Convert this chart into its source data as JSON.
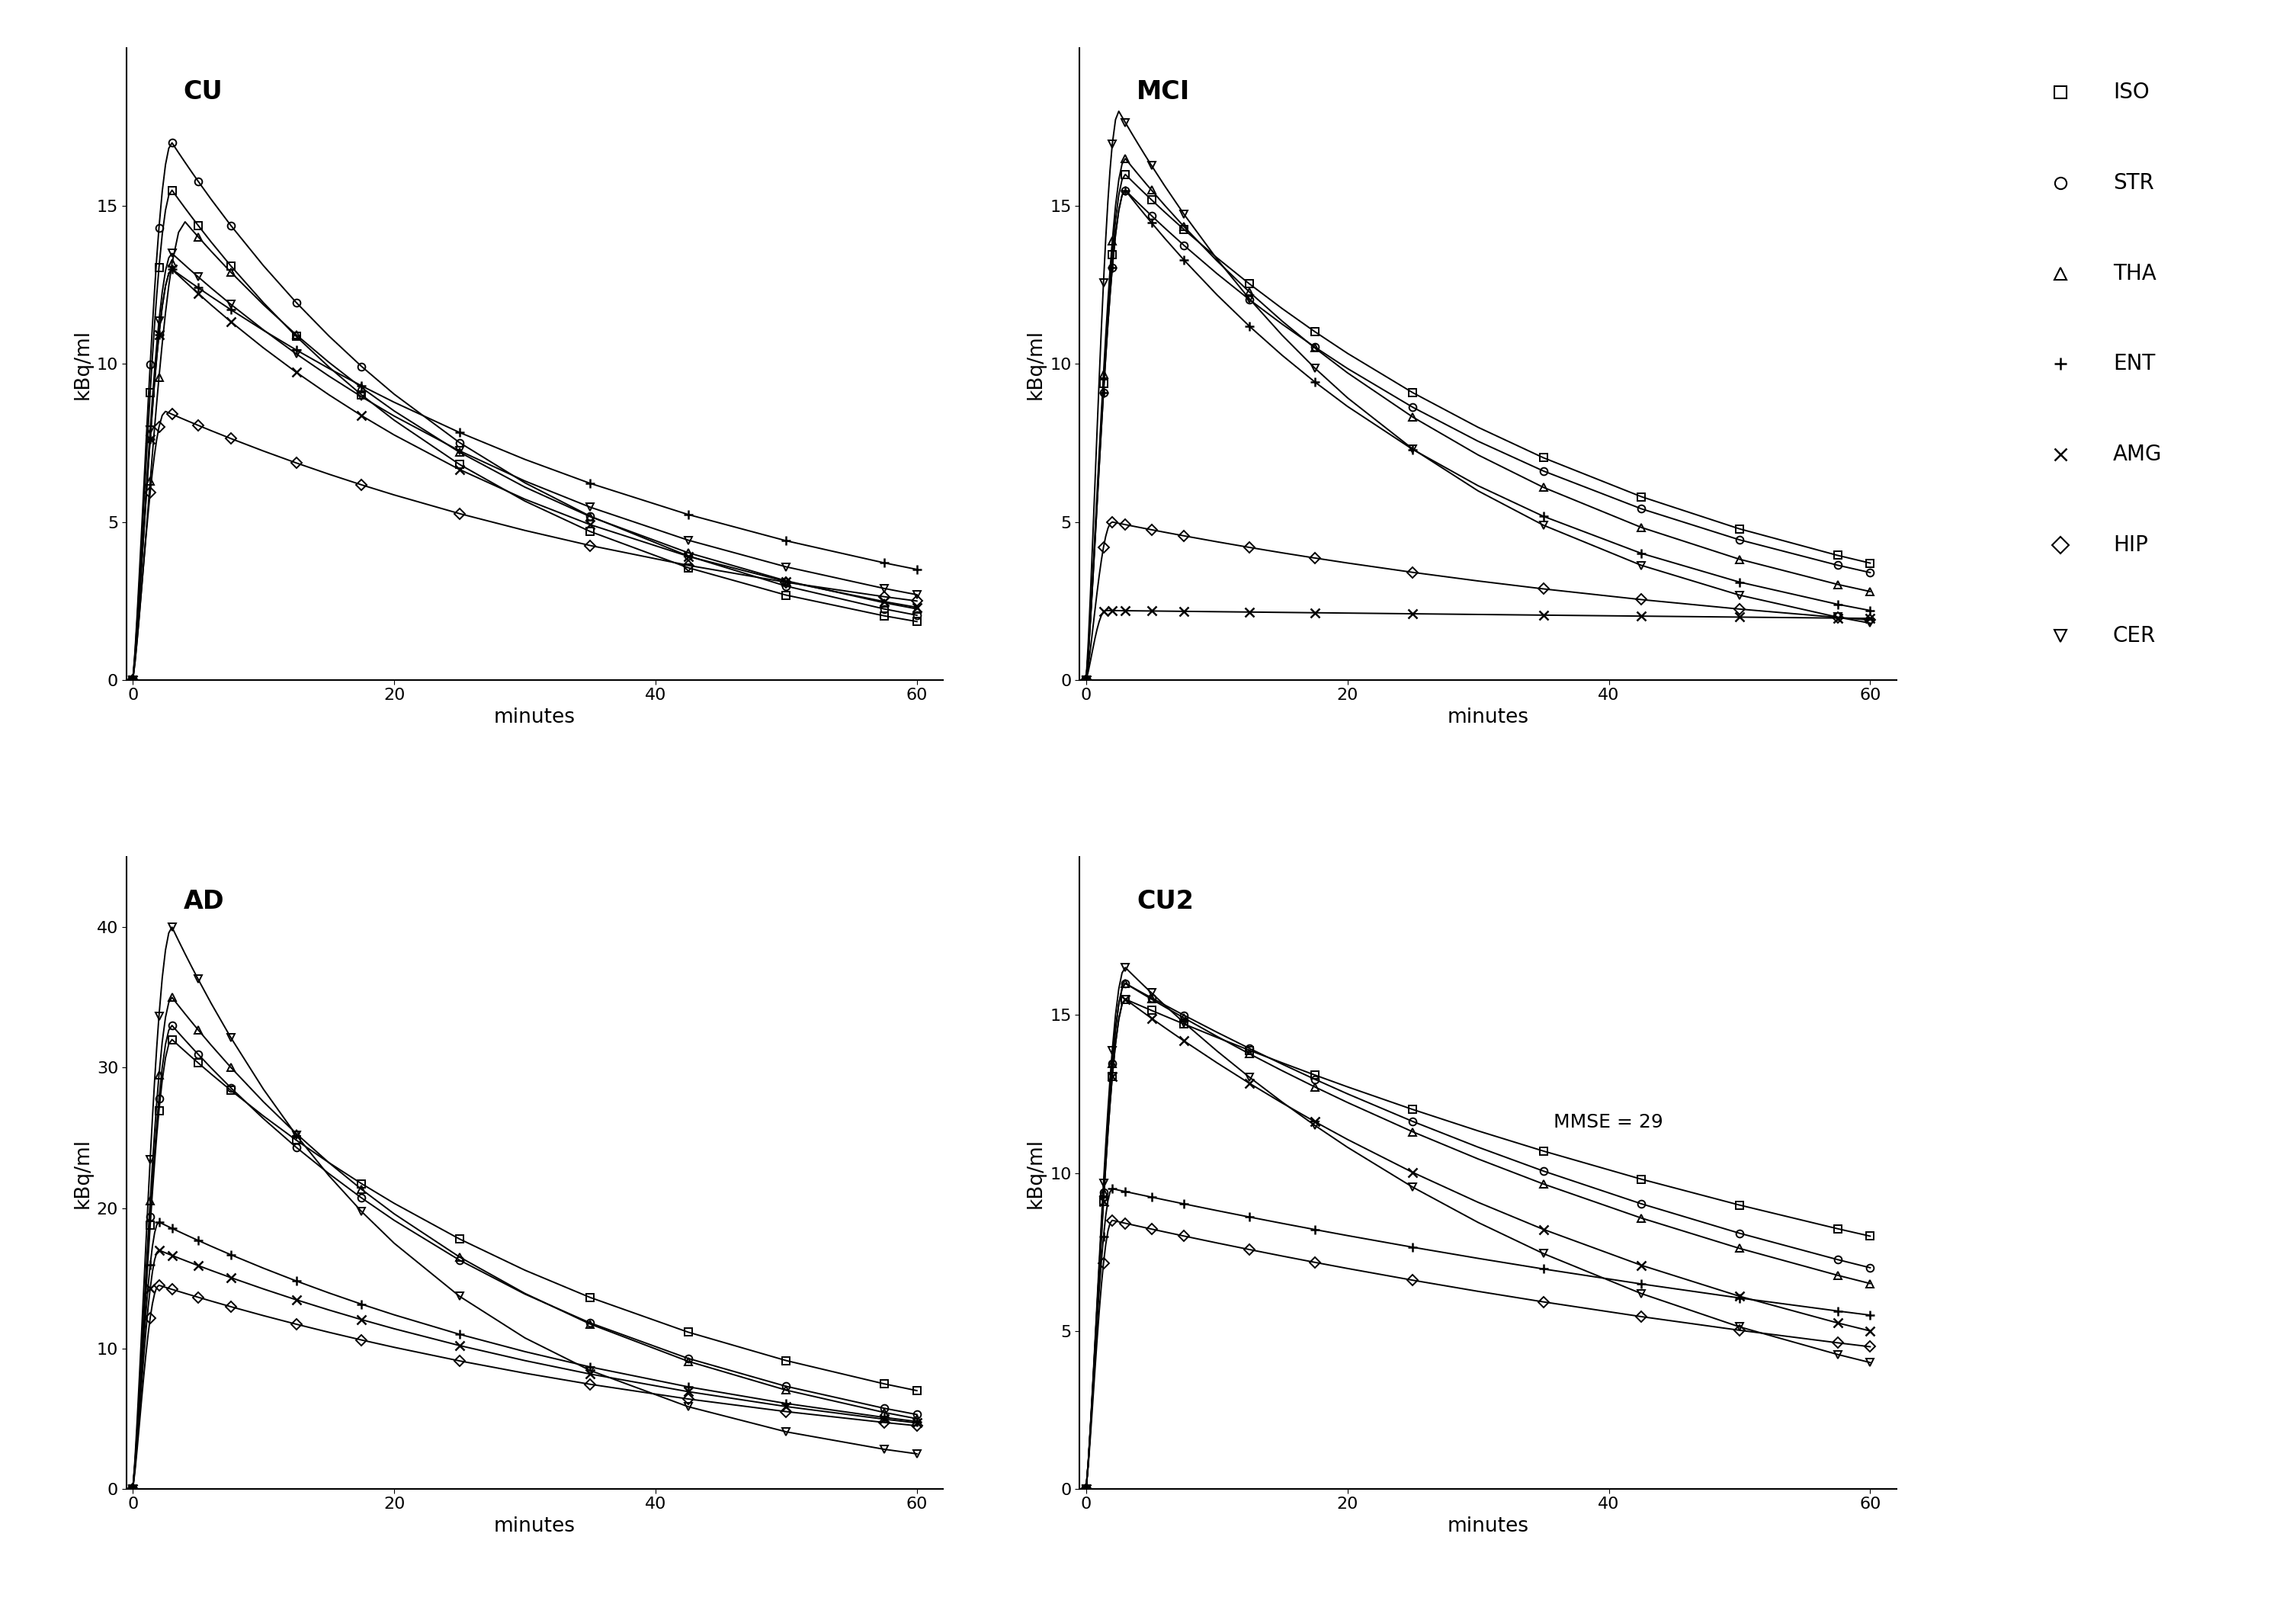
{
  "panels": [
    {
      "title": "CU",
      "title_weight": "bold",
      "ylim": [
        0,
        20
      ],
      "yticks": [
        0,
        5,
        10,
        15
      ],
      "ylabel": "kBq/ml",
      "xlabel": "minutes",
      "xticks": [
        0,
        20,
        40,
        60
      ],
      "regions": [
        {
          "name": "ISO",
          "shape": "square",
          "peak_t": 3.0,
          "peak_v": 15.5,
          "end_v": 1.85
        },
        {
          "name": "STR",
          "shape": "circle",
          "peak_t": 3.0,
          "peak_v": 17.0,
          "end_v": 2.05
        },
        {
          "name": "THA",
          "shape": "triangle_up",
          "peak_t": 4.0,
          "peak_v": 14.5,
          "end_v": 2.25
        },
        {
          "name": "ENT",
          "shape": "plus",
          "peak_t": 3.0,
          "peak_v": 13.0,
          "end_v": 3.5
        },
        {
          "name": "AMG",
          "shape": "x",
          "peak_t": 3.0,
          "peak_v": 13.0,
          "end_v": 2.3
        },
        {
          "name": "HIP",
          "shape": "diamond",
          "peak_t": 2.5,
          "peak_v": 8.5,
          "end_v": 2.5
        },
        {
          "name": "CER",
          "shape": "triangle_down",
          "peak_t": 3.0,
          "peak_v": 13.5,
          "end_v": 2.7
        }
      ]
    },
    {
      "title": "MCI",
      "title_weight": "bold",
      "ylim": [
        0,
        20
      ],
      "yticks": [
        0,
        5,
        10,
        15
      ],
      "ylabel": "kBq/ml",
      "xlabel": "minutes",
      "xticks": [
        0,
        20,
        40,
        60
      ],
      "regions": [
        {
          "name": "ISO",
          "shape": "square",
          "peak_t": 3.0,
          "peak_v": 16.0,
          "end_v": 3.7
        },
        {
          "name": "STR",
          "shape": "circle",
          "peak_t": 3.0,
          "peak_v": 15.5,
          "end_v": 3.4
        },
        {
          "name": "THA",
          "shape": "triangle_up",
          "peak_t": 3.0,
          "peak_v": 16.5,
          "end_v": 2.8
        },
        {
          "name": "ENT",
          "shape": "plus",
          "peak_t": 3.0,
          "peak_v": 15.5,
          "end_v": 2.2
        },
        {
          "name": "AMG",
          "shape": "x",
          "peak_t": 1.5,
          "peak_v": 2.2,
          "end_v": 1.95
        },
        {
          "name": "HIP",
          "shape": "diamond",
          "peak_t": 2.0,
          "peak_v": 5.0,
          "end_v": 1.9
        },
        {
          "name": "CER",
          "shape": "triangle_down",
          "peak_t": 2.5,
          "peak_v": 18.0,
          "end_v": 1.8
        }
      ]
    },
    {
      "title": "AD",
      "title_weight": "bold",
      "ylim": [
        0,
        45
      ],
      "yticks": [
        0,
        10,
        20,
        30,
        40
      ],
      "ylabel": "kBq/ml",
      "xlabel": "minutes",
      "xticks": [
        0,
        20,
        40,
        60
      ],
      "regions": [
        {
          "name": "ISO",
          "shape": "square",
          "peak_t": 3.0,
          "peak_v": 32.0,
          "end_v": 7.0
        },
        {
          "name": "STR",
          "shape": "circle",
          "peak_t": 3.0,
          "peak_v": 33.0,
          "end_v": 5.3
        },
        {
          "name": "THA",
          "shape": "triangle_up",
          "peak_t": 3.0,
          "peak_v": 35.0,
          "end_v": 5.0
        },
        {
          "name": "ENT",
          "shape": "plus",
          "peak_t": 2.0,
          "peak_v": 19.0,
          "end_v": 4.8
        },
        {
          "name": "AMG",
          "shape": "x",
          "peak_t": 2.0,
          "peak_v": 17.0,
          "end_v": 4.7
        },
        {
          "name": "HIP",
          "shape": "diamond",
          "peak_t": 2.0,
          "peak_v": 14.5,
          "end_v": 4.5
        },
        {
          "name": "CER",
          "shape": "triangle_down",
          "peak_t": 3.0,
          "peak_v": 40.0,
          "end_v": 2.5
        }
      ]
    },
    {
      "title": "CU2",
      "title_weight": "bold",
      "ylim": [
        0,
        20
      ],
      "yticks": [
        0,
        5,
        10,
        15
      ],
      "ylabel": "kBq/ml",
      "xlabel": "minutes",
      "xticks": [
        0,
        20,
        40,
        60
      ],
      "annotation": "MMSE = 29",
      "regions": [
        {
          "name": "ISO",
          "shape": "square",
          "peak_t": 3.0,
          "peak_v": 15.5,
          "end_v": 8.0
        },
        {
          "name": "STR",
          "shape": "circle",
          "peak_t": 3.0,
          "peak_v": 16.0,
          "end_v": 7.0
        },
        {
          "name": "THA",
          "shape": "triangle_up",
          "peak_t": 3.0,
          "peak_v": 16.0,
          "end_v": 6.5
        },
        {
          "name": "ENT",
          "shape": "plus",
          "peak_t": 2.0,
          "peak_v": 9.5,
          "end_v": 5.5
        },
        {
          "name": "AMG",
          "shape": "x",
          "peak_t": 3.0,
          "peak_v": 15.5,
          "end_v": 5.0
        },
        {
          "name": "HIP",
          "shape": "diamond",
          "peak_t": 2.0,
          "peak_v": 8.5,
          "end_v": 4.5
        },
        {
          "name": "CER",
          "shape": "triangle_down",
          "peak_t": 3.0,
          "peak_v": 16.5,
          "end_v": 4.0
        }
      ]
    }
  ],
  "legend_labels": [
    "ISO",
    "STR",
    "THA",
    "ENT",
    "AMG",
    "HIP",
    "CER"
  ],
  "legend_markers": [
    "square",
    "circle",
    "triangle_up",
    "plus",
    "x",
    "diamond",
    "triangle_down"
  ]
}
